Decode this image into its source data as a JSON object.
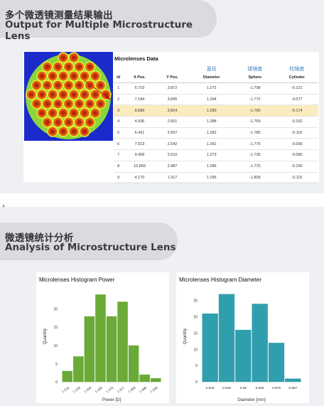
{
  "section1": {
    "title_cn": "多个微透镜测量结果输出",
    "title_en": "Output for Multiple Microstructure Lens"
  },
  "table": {
    "title": "Microlenses Data",
    "headers_cn": [
      "",
      "",
      "",
      "直径",
      "球镜度",
      "柱镜度"
    ],
    "headers": [
      "Id",
      "X Pos.",
      "Y Pos.",
      "Diameter",
      "Sphere",
      "Cylinder"
    ],
    "rows": [
      [
        "1",
        "5.710",
        "3.872",
        "1.272",
        "-1.708",
        "-0.121"
      ],
      [
        "2",
        "7.194",
        "3.845",
        "1.294",
        "-1.772",
        "-0.077"
      ],
      [
        "3",
        "8.689",
        "3.824",
        "1.290",
        "-1.760",
        "-0.174"
      ],
      [
        "4",
        "4.936",
        "2.601",
        "1.288",
        "-1.769",
        "-0.152"
      ],
      [
        "5",
        "6.421",
        "2.567",
        "1.282",
        "-1.785",
        "-0.116"
      ],
      [
        "6",
        "7.913",
        "2.542",
        "1.281",
        "-1.770",
        "-0.099"
      ],
      [
        "7",
        "9.408",
        "2.510",
        "1.273",
        "-1.735",
        "-0.080"
      ],
      [
        "8",
        "10.899",
        "2.487",
        "1.286",
        "-1.770",
        "-0.150"
      ],
      [
        "9",
        "4.170",
        "1.317",
        "1.295",
        "-1.809",
        "-0.115"
      ]
    ],
    "highlight_row": 2,
    "highlight_color": "#fbecc0"
  },
  "section2": {
    "title_cn": "微透镜统计分析",
    "title_en": "Analysis of Microstructure Lens"
  },
  "chart_data": [
    {
      "type": "bar",
      "title": "Microlenses Histogram Power",
      "xlabel": "Power [D]",
      "ylabel": "Quantity",
      "color": "#6aaa36",
      "categories": [
        "1.213",
        "1.233",
        "1.294",
        "1.335",
        "1.376",
        "1.417",
        "1.458",
        "1.498",
        "1.539"
      ],
      "values": [
        3,
        7,
        18,
        24,
        18,
        22,
        10,
        2,
        1
      ],
      "ylim": [
        0,
        25
      ],
      "yticks": [
        0,
        5,
        10,
        15,
        20
      ],
      "xtick_positions": [
        0,
        1,
        2,
        3,
        4,
        5,
        6,
        7,
        8
      ],
      "xtick_labels": [
        "1.213",
        "1.233",
        "1.294",
        "1.335",
        "1.376",
        "1.417",
        "1.458",
        "1.498",
        "1.539"
      ]
    },
    {
      "type": "bar",
      "title": "Microlenses Histogram Diameter",
      "xlabel": "Diameter [mm]",
      "ylabel": "Quantity",
      "color": "#2f9fad",
      "values": [
        21,
        27,
        16,
        24,
        12,
        1
      ],
      "ylim": [
        0,
        28
      ],
      "yticks": [
        0,
        5,
        10,
        15,
        20,
        25
      ],
      "xtick_labels": [
        "0.826",
        "0.838",
        "0.85",
        "0.863",
        "0.875",
        "0.887"
      ]
    }
  ]
}
